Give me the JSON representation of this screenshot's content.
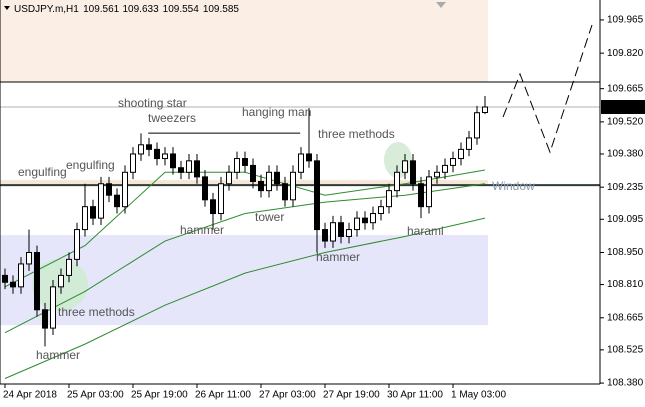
{
  "chart_data": {
    "type": "candlestick",
    "symbol": "USDJPY.m,H1",
    "categories": [
      "24 Apr 2018",
      null,
      null,
      null,
      null,
      null,
      null,
      null,
      "25 Apr 03:00",
      null,
      null,
      null,
      null,
      null,
      null,
      null,
      "25 Apr 19:00",
      null,
      null,
      null,
      null,
      null,
      null,
      null,
      "26 Apr 11:00",
      null,
      null,
      null,
      null,
      null,
      null,
      null,
      "27 Apr 03:00",
      null,
      null,
      null,
      null,
      null,
      null,
      null,
      "27 Apr 19:00",
      null,
      null,
      null,
      null,
      null,
      null,
      null,
      "30 Apr 11:00",
      null,
      null,
      null,
      null,
      null,
      null,
      null,
      "1 May 03:00",
      null,
      null,
      null,
      null
    ],
    "open": [
      108.85,
      108.82,
      108.8,
      108.9,
      108.95,
      108.7,
      108.62,
      108.8,
      108.85,
      108.92,
      109.05,
      109.15,
      109.1,
      109.25,
      109.2,
      109.15,
      109.3,
      109.38,
      109.42,
      109.4,
      109.36,
      109.38,
      109.32,
      109.3,
      109.35,
      109.28,
      109.18,
      109.12,
      109.25,
      109.3,
      109.36,
      109.33,
      109.26,
      109.22,
      109.3,
      109.25,
      109.18,
      109.3,
      109.38,
      109.35,
      109.05,
      109.0,
      109.08,
      109.02,
      109.05,
      109.1,
      109.08,
      109.12,
      109.15,
      109.22,
      109.3,
      109.35,
      109.25,
      109.15,
      109.28,
      109.3,
      109.33,
      109.36,
      109.4,
      109.45,
      109.561
    ],
    "high": [
      108.88,
      108.85,
      108.93,
      109.05,
      108.98,
      108.73,
      108.83,
      108.88,
      108.95,
      109.08,
      109.25,
      109.18,
      109.28,
      109.28,
      109.23,
      109.33,
      109.41,
      109.47,
      109.45,
      109.43,
      109.41,
      109.41,
      109.35,
      109.38,
      109.38,
      109.31,
      109.21,
      109.28,
      109.33,
      109.39,
      109.39,
      109.36,
      109.29,
      109.33,
      109.33,
      109.28,
      109.33,
      109.41,
      109.58,
      109.38,
      109.08,
      109.11,
      109.11,
      109.08,
      109.13,
      109.13,
      109.15,
      109.18,
      109.25,
      109.33,
      109.38,
      109.38,
      109.28,
      109.31,
      109.33,
      109.36,
      109.39,
      109.43,
      109.48,
      109.59,
      109.633
    ],
    "low": [
      108.79,
      108.77,
      108.77,
      108.87,
      108.67,
      108.54,
      108.59,
      108.77,
      108.82,
      108.89,
      109.02,
      109.07,
      109.07,
      109.17,
      109.12,
      109.12,
      109.27,
      109.35,
      109.37,
      109.33,
      109.33,
      109.29,
      109.27,
      109.27,
      109.25,
      109.15,
      109.05,
      109.09,
      109.22,
      109.27,
      109.3,
      109.23,
      109.19,
      109.19,
      109.22,
      109.15,
      109.15,
      109.27,
      109.32,
      108.95,
      108.97,
      108.97,
      108.99,
      108.99,
      109.02,
      109.05,
      109.05,
      109.09,
      109.12,
      109.19,
      109.27,
      109.22,
      109.1,
      109.12,
      109.25,
      109.27,
      109.3,
      109.33,
      109.37,
      109.42,
      109.554
    ],
    "close": [
      108.82,
      108.8,
      108.9,
      108.95,
      108.7,
      108.62,
      108.8,
      108.85,
      108.92,
      109.05,
      109.15,
      109.1,
      109.25,
      109.2,
      109.15,
      109.3,
      109.38,
      109.42,
      109.4,
      109.36,
      109.38,
      109.32,
      109.3,
      109.35,
      109.28,
      109.18,
      109.12,
      109.25,
      109.3,
      109.36,
      109.33,
      109.26,
      109.22,
      109.3,
      109.25,
      109.18,
      109.3,
      109.38,
      109.35,
      109.05,
      109.0,
      109.08,
      109.02,
      109.05,
      109.1,
      109.08,
      109.12,
      109.15,
      109.22,
      109.3,
      109.35,
      109.25,
      109.15,
      109.28,
      109.3,
      109.33,
      109.36,
      109.4,
      109.45,
      109.56,
      109.585
    ],
    "overlays": [
      {
        "color": "#2e8b2e",
        "x": [
          0,
          10,
          20,
          30,
          40,
          50,
          60
        ],
        "values": [
          108.8,
          108.98,
          109.3,
          109.3,
          109.2,
          109.25,
          109.31
        ]
      },
      {
        "color": "#2e8b2e",
        "x": [
          0,
          10,
          20,
          30,
          40,
          50,
          60
        ],
        "values": [
          108.6,
          108.78,
          109.0,
          109.12,
          109.17,
          109.2,
          109.25
        ]
      },
      {
        "color": "#2e8b2e",
        "x": [
          0,
          10,
          20,
          30,
          40,
          50,
          60
        ],
        "values": [
          108.4,
          108.55,
          108.72,
          108.86,
          108.95,
          109.02,
          109.1
        ]
      }
    ],
    "projection": {
      "color": "#000000",
      "x": [
        62.25,
        64.375,
        68.125,
        73.375
      ],
      "values": [
        109.541,
        109.729,
        109.388,
        109.943
      ]
    },
    "zones": [
      {
        "from": 109.694,
        "to": 110.052,
        "color": "#fbeee4"
      },
      {
        "from": 109.24,
        "to": 109.266,
        "color": "#f5e6d6"
      },
      {
        "from": 108.633,
        "to": 109.026,
        "color": "#e6e6fa"
      }
    ],
    "levels": [
      {
        "value": 109.694,
        "color": "#000000"
      },
      {
        "value": 109.244,
        "color": "#2f3b3b"
      }
    ],
    "trendline": {
      "x": [
        17.9,
        36.9
      ],
      "values": [
        109.471,
        109.471
      ]
    },
    "annotations": [
      "engulfing",
      "engulfing",
      "shooting star",
      "tweezers",
      "hanging man",
      "three methods",
      "hammer",
      "tower",
      "hammer",
      "harami",
      "three methods",
      "hammer",
      "Window"
    ],
    "ylim": [
      108.376,
      110.052
    ],
    "yticks": [
      109.965,
      {
        "value": 109.82,
        "label": "109.820"
      },
      109.665,
      {
        "value": 109.52,
        "label": "109.520"
      },
      {
        "value": 109.38,
        "label": "109.380"
      },
      109.235,
      109.095,
      {
        "value": 108.95,
        "label": "108.950"
      },
      {
        "value": 108.81,
        "label": "108.810"
      },
      108.665,
      108.525,
      {
        "value": 108.38,
        "label": "108.380"
      }
    ]
  }
}
